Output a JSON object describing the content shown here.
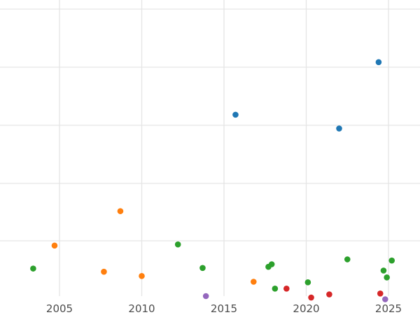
{
  "chart_data": {
    "type": "scatter",
    "title": "",
    "xlabel": "",
    "ylabel": "",
    "xlim": [
      2001.4,
      2026.7
    ],
    "ylim": [
      0,
      1
    ],
    "x_ticks": [
      2005,
      2010,
      2015,
      2020,
      2025
    ],
    "grid": true,
    "legend": "none",
    "series": [
      {
        "color": "#1f77b4",
        "points": [
          {
            "x": 2015.7,
            "y": 0.632
          },
          {
            "x": 2022.0,
            "y": 0.584
          },
          {
            "x": 2024.4,
            "y": 0.815
          }
        ]
      },
      {
        "color": "#ff7f0e",
        "points": [
          {
            "x": 2004.7,
            "y": 0.176
          },
          {
            "x": 2007.7,
            "y": 0.085
          },
          {
            "x": 2008.7,
            "y": 0.296
          },
          {
            "x": 2010.0,
            "y": 0.07
          },
          {
            "x": 2016.8,
            "y": 0.05
          }
        ]
      },
      {
        "color": "#2ca02c",
        "points": [
          {
            "x": 2003.4,
            "y": 0.096
          },
          {
            "x": 2012.2,
            "y": 0.18
          },
          {
            "x": 2013.7,
            "y": 0.098
          },
          {
            "x": 2017.7,
            "y": 0.102
          },
          {
            "x": 2017.9,
            "y": 0.111
          },
          {
            "x": 2018.1,
            "y": 0.026
          },
          {
            "x": 2020.1,
            "y": 0.048
          },
          {
            "x": 2022.5,
            "y": 0.128
          },
          {
            "x": 2024.7,
            "y": 0.089
          },
          {
            "x": 2024.9,
            "y": 0.065
          },
          {
            "x": 2025.2,
            "y": 0.124
          }
        ]
      },
      {
        "color": "#d62728",
        "points": [
          {
            "x": 2018.8,
            "y": 0.026
          },
          {
            "x": 2020.3,
            "y": -0.005
          },
          {
            "x": 2021.4,
            "y": 0.006
          },
          {
            "x": 2024.5,
            "y": 0.009
          }
        ]
      },
      {
        "color": "#9467bd",
        "points": [
          {
            "x": 2013.9,
            "y": 0.0
          },
          {
            "x": 2024.8,
            "y": -0.011
          }
        ]
      }
    ]
  }
}
